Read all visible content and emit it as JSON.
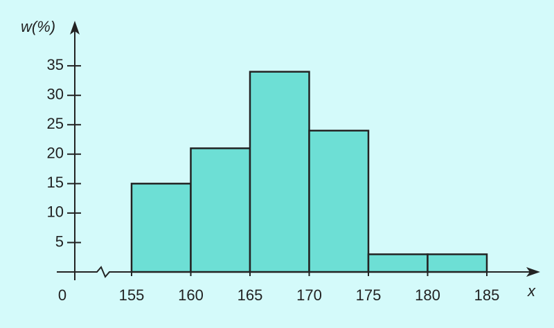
{
  "chart_data": {
    "type": "histogram",
    "y_label": "w(%)",
    "x_label": "x",
    "origin_label": "0",
    "bins": [
      155,
      160,
      165,
      170,
      175,
      180,
      185
    ],
    "values": [
      15,
      21,
      34,
      24,
      3,
      3
    ],
    "color": "#6ddfd5",
    "xlim": [
      150,
      189
    ],
    "xticks": [
      155,
      160,
      165,
      170,
      175,
      180,
      185
    ],
    "ylim": [
      0,
      42
    ],
    "yticks": [
      5,
      10,
      15,
      20,
      25,
      30,
      35
    ],
    "grid": false
  }
}
